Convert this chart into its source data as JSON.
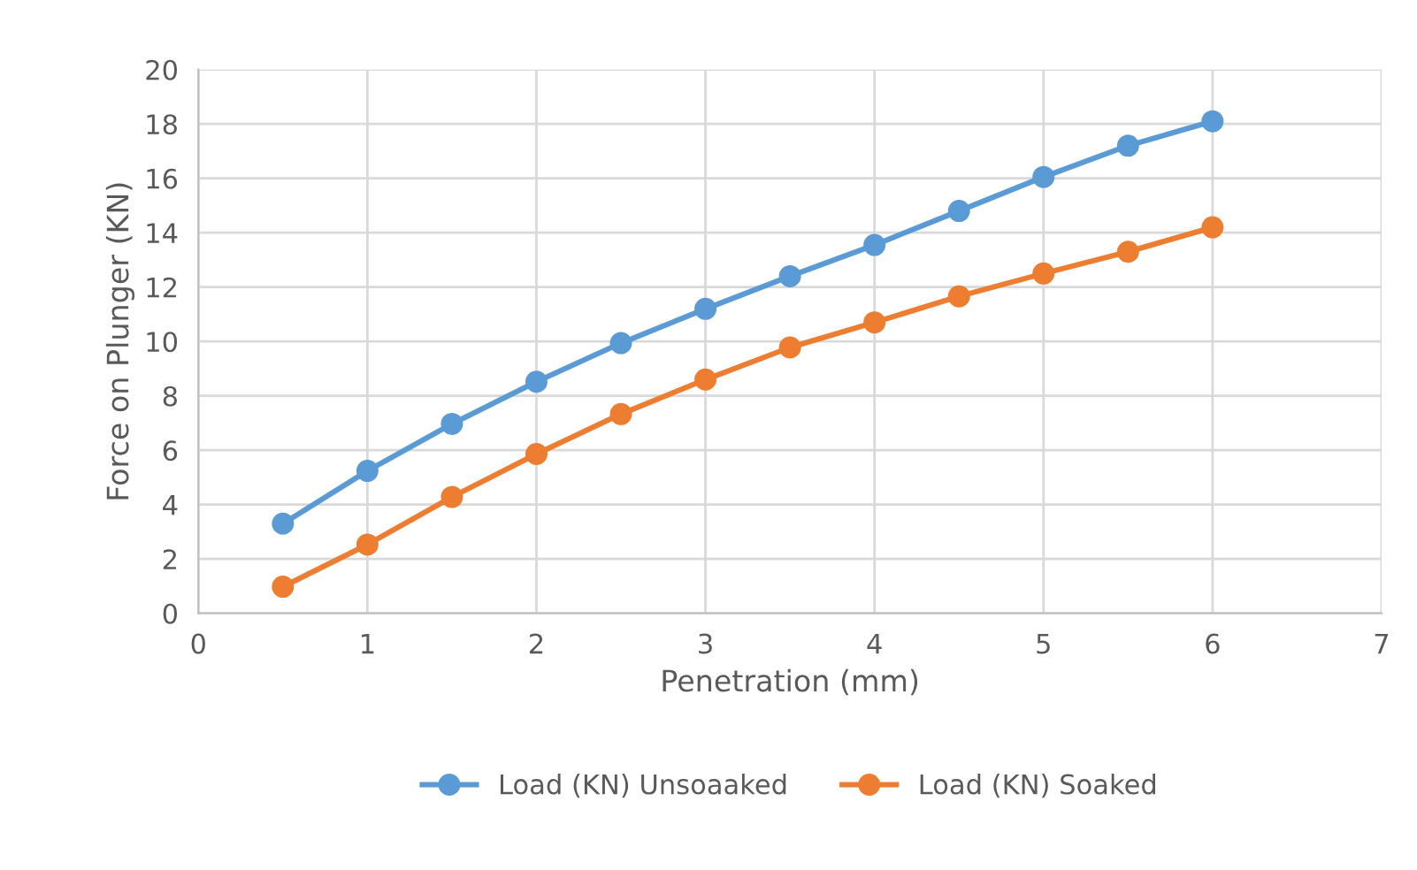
{
  "chart_data": {
    "type": "line",
    "xlabel": "Penetration (mm)",
    "ylabel": "Force on Plunger (KN)",
    "x": [
      0.5,
      1,
      1.5,
      2,
      2.5,
      3,
      3.5,
      4,
      4.5,
      5,
      5.5,
      6
    ],
    "series": [
      {
        "name": "Load (KN) Unsoaaked",
        "color": "#5b9bd5",
        "values": [
          3.3,
          5.24,
          6.97,
          8.52,
          9.94,
          11.2,
          12.4,
          13.55,
          14.8,
          16.05,
          17.2,
          18.1
        ]
      },
      {
        "name": "Load (KN) Soaked",
        "color": "#ed7d31",
        "values": [
          0.98,
          2.53,
          4.28,
          5.86,
          7.33,
          8.6,
          9.78,
          10.7,
          11.66,
          12.5,
          13.3,
          14.2
        ]
      }
    ],
    "xlim": [
      0,
      7
    ],
    "xticks": [
      0,
      1,
      2,
      3,
      4,
      5,
      6,
      7
    ],
    "ylim": [
      0,
      20
    ],
    "yticks": [
      0,
      2,
      4,
      6,
      8,
      10,
      12,
      14,
      16,
      18,
      20
    ],
    "grid": true,
    "legend": "bottom",
    "marker": "circle",
    "line_style": "solid"
  }
}
